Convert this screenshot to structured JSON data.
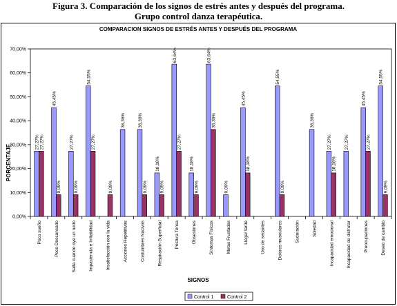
{
  "figure": {
    "title_line1": "Figura 3. Comparación de los signos de estrés antes y después del programa.",
    "title_line2": "Grupo control danza terapéutica."
  },
  "chart_data": {
    "type": "bar",
    "title": "COMPARACION SIGNOS DE ESTRÉS ANTES Y DESPUÉS DEL PROGRAMA",
    "xlabel": "SIGNOS",
    "ylabel": "PORCENTAJE",
    "ylim": [
      0,
      70
    ],
    "yticks": [
      "0,00%",
      "10,00%",
      "20,00%",
      "30,00%",
      "40,00%",
      "50,00%",
      "60,00%",
      "70,00%"
    ],
    "grid": false,
    "legend_position": "bottom-right",
    "categories": [
      "Poco sueño",
      "Poco Descansado",
      "Salta cuando oye un ruido",
      "Impaciencia e Irritabilidad",
      "Insatisfacción con la vida",
      "Acciones Repetitivas",
      "Costumbres Nocivas",
      "Respiración Superficial",
      "Postura Tensa",
      "Obsesiones",
      "Síntomas Físicos",
      "Metas Frustadas",
      "Llegar tarde",
      "Uso de sedantes",
      "Dolores musculares",
      "Sudoración",
      "Soledad",
      "Incapacidad emocional",
      "Incapacidad de disfrutar",
      "Preocupaciones",
      "Deseo de cambio"
    ],
    "series": [
      {
        "name": "Control 1",
        "color": "#9999ff",
        "values": [
          27.27,
          45.45,
          27.27,
          54.55,
          0,
          36.36,
          36.36,
          18.18,
          63.64,
          18.18,
          63.64,
          9.09,
          45.45,
          0,
          54.55,
          0,
          36.36,
          27.27,
          27.27,
          45.45,
          54.55
        ],
        "labels": [
          "27,27%",
          "45,45%",
          "27,27%",
          "54,55%",
          "",
          "36,36%",
          "36,36%",
          "18,18%",
          "63,64%",
          "18,18%",
          "63,64%",
          "9,09%",
          "45,45%",
          "",
          "54,55%",
          "",
          "36,36%",
          "27,27%",
          "27,27%",
          "45,45%",
          "54,55%"
        ]
      },
      {
        "name": "Control 2",
        "color": "#993366",
        "values": [
          27.27,
          9.09,
          9.09,
          27.27,
          9.09,
          0,
          9.09,
          9.09,
          27.27,
          9.09,
          36.36,
          0,
          18.18,
          0,
          9.09,
          0,
          0,
          18.18,
          0,
          27.27,
          9.09
        ],
        "labels": [
          "27,27%",
          "9,09%",
          "9,09%",
          "27,27%",
          "9,09%",
          "",
          "9,09%",
          "9,09%",
          "27,27%",
          "9,09%",
          "36,36%",
          "",
          "18,18%",
          "",
          "9,09%",
          "",
          "",
          "18,18%",
          "",
          "27,27%",
          "9,09%"
        ]
      }
    ]
  }
}
